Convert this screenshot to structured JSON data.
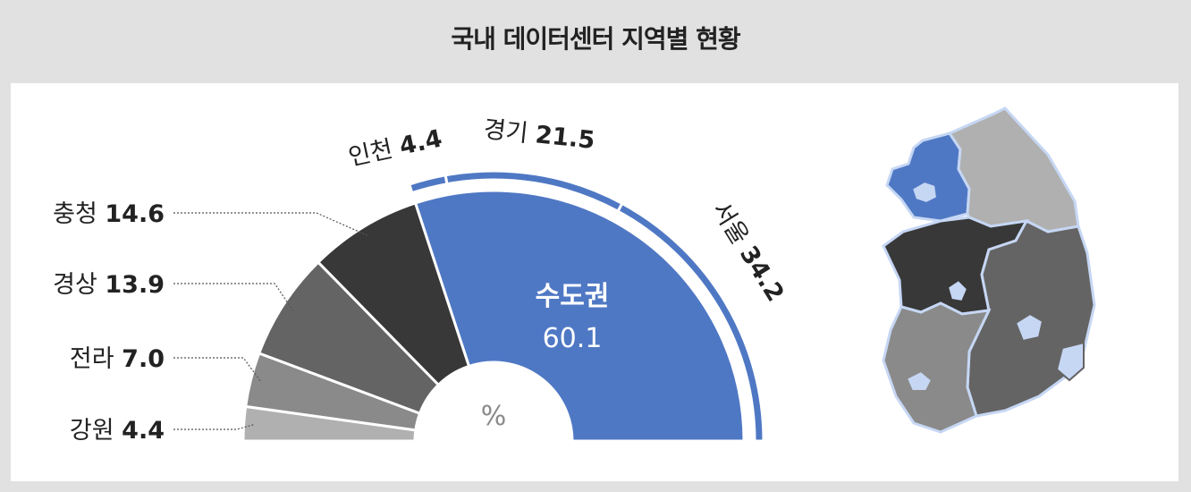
{
  "title": "국내 데이터센터 지역별 현황",
  "colors": {
    "capital": "#4f78c4",
    "chungcheong": "#383838",
    "gyeongsang": "#646464",
    "jeolla": "#8a8a8a",
    "gangwon": "#b0b0b0",
    "background": "#e1e1e1",
    "panel": "#ffffff",
    "map_city": "#c6d7f4"
  },
  "chart_data": {
    "type": "pie",
    "unit": "%",
    "inner_segments": [
      {
        "name": "수도권",
        "value": 60.1,
        "color": "#4f78c4"
      },
      {
        "name": "충청",
        "value": 14.6,
        "color": "#383838"
      },
      {
        "name": "경상",
        "value": 13.9,
        "color": "#646464"
      },
      {
        "name": "전라",
        "value": 7.0,
        "color": "#8a8a8a"
      },
      {
        "name": "강원",
        "value": 4.4,
        "color": "#b0b0b0"
      }
    ],
    "outer_segments": [
      {
        "name": "서울",
        "value": 34.2,
        "parent": "수도권"
      },
      {
        "name": "경기",
        "value": 21.5,
        "parent": "수도권"
      },
      {
        "name": "인천",
        "value": 4.4,
        "parent": "수도권"
      }
    ],
    "center_label": "%",
    "highlight_label": {
      "name": "수도권",
      "value": "60.1"
    }
  }
}
